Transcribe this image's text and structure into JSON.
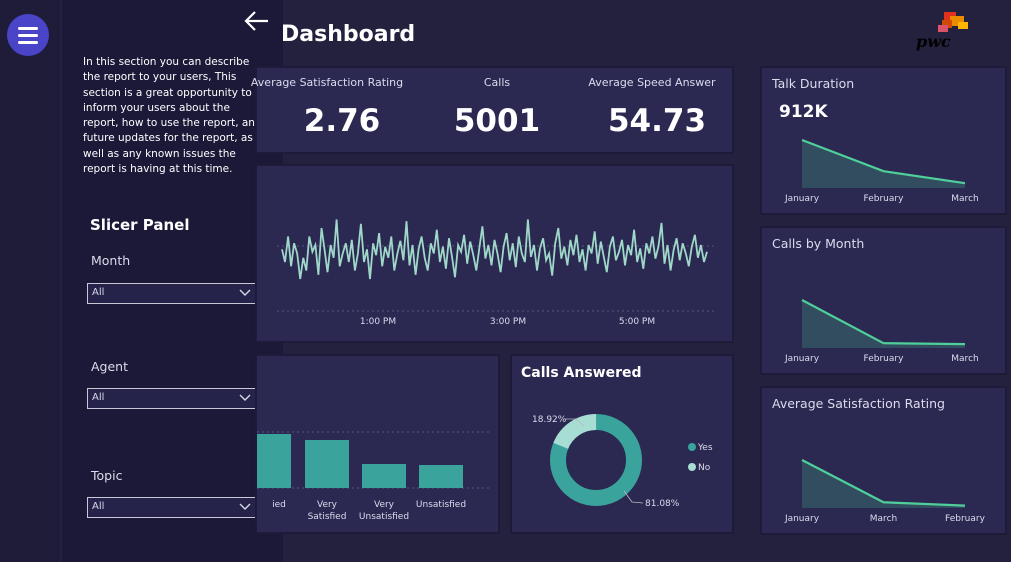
{
  "page": {
    "title": "Dashboard"
  },
  "logo": {
    "text": "pwc"
  },
  "panel": {
    "description": "In this section you can describe the report to your users, This section is a great opportunity to inform your users about the report, how to use the report, any future updates for the report, as well as any known issues the report is having at this time.",
    "slicer_title": "Slicer Panel",
    "slicers": [
      {
        "label": "Month",
        "value": "All"
      },
      {
        "label": "Agent",
        "value": "All"
      },
      {
        "label": "Topic",
        "value": "All"
      }
    ]
  },
  "kpis": [
    {
      "label": "Average Satisfaction Rating",
      "value": "2.76"
    },
    {
      "label": "Calls",
      "value": "5001"
    },
    {
      "label": "Average Speed Answer",
      "value": "54.73"
    }
  ],
  "chart_data": [
    {
      "type": "line",
      "title": "Talk Duration",
      "value_label": "912K",
      "categories": [
        "January",
        "February",
        "March"
      ],
      "values": [
        1.0,
        0.35,
        0.1
      ],
      "ylim": [
        0,
        1
      ],
      "grid": false
    },
    {
      "type": "line",
      "title": "Calls by Month",
      "categories": [
        "January",
        "February",
        "March"
      ],
      "values": [
        1.0,
        0.1,
        0.08
      ],
      "ylim": [
        0,
        1
      ],
      "grid": false
    },
    {
      "type": "line",
      "title": "Average Satisfaction Rating",
      "categories": [
        "January",
        "March",
        "February"
      ],
      "values": [
        1.0,
        0.12,
        0.05
      ],
      "ylim": [
        0,
        1
      ],
      "grid": false
    },
    {
      "type": "line",
      "title": "",
      "x_ticks": [
        "1:00 PM",
        "3:00 PM",
        "5:00 PM"
      ],
      "values": [
        0.55,
        0.4,
        0.7,
        0.35,
        0.62,
        0.5,
        0.2,
        0.45,
        0.3,
        0.7,
        0.52,
        0.6,
        0.25,
        0.8,
        0.55,
        0.28,
        0.6,
        0.45,
        0.9,
        0.35,
        0.5,
        0.62,
        0.4,
        0.66,
        0.3,
        0.5,
        0.85,
        0.4,
        0.55,
        0.2,
        0.62,
        0.48,
        0.74,
        0.35,
        0.58,
        0.45,
        0.7,
        0.3,
        0.5,
        0.65,
        0.42,
        0.88,
        0.36,
        0.6,
        0.25,
        0.55,
        0.7,
        0.45,
        0.3,
        0.62,
        0.5,
        0.78,
        0.4,
        0.58,
        0.32,
        0.68,
        0.46,
        0.22,
        0.6,
        0.52,
        0.72,
        0.38,
        0.64,
        0.48,
        0.3,
        0.56,
        0.82,
        0.44,
        0.6,
        0.36,
        0.66,
        0.5,
        0.28,
        0.58,
        0.74,
        0.42,
        0.62,
        0.34,
        0.7,
        0.5,
        0.4,
        0.9,
        0.46,
        0.6,
        0.3,
        0.56,
        0.68,
        0.42,
        0.5,
        0.24,
        0.62,
        0.8,
        0.44,
        0.58,
        0.36,
        0.66,
        0.48,
        0.72,
        0.4,
        0.55,
        0.3,
        0.6,
        0.5,
        0.76,
        0.38,
        0.64,
        0.46,
        0.28,
        0.58,
        0.7,
        0.42,
        0.52,
        0.66,
        0.36,
        0.6,
        0.48,
        0.78,
        0.4,
        0.56,
        0.32,
        0.62,
        0.5,
        0.7,
        0.44,
        0.58,
        0.86,
        0.38,
        0.6,
        0.3,
        0.54,
        0.68,
        0.42,
        0.62,
        0.5,
        0.35,
        0.58,
        0.72,
        0.45,
        0.6,
        0.4,
        0.52
      ],
      "ylim": [
        0,
        1
      ],
      "grid": true
    },
    {
      "type": "bar",
      "title": "",
      "categories": [
        "Satisfied",
        "Very Satisfied",
        "Very Unsatisfied",
        "Unsatisfied"
      ],
      "tick_labels": [
        "ied",
        "Very Satisfied",
        "Very Unsatisfied",
        "Unsatisfied"
      ],
      "values": [
        54,
        48,
        24,
        23
      ],
      "ylim": [
        0,
        60
      ],
      "grid": true
    },
    {
      "type": "pie",
      "title": "Calls Answered",
      "categories": [
        "Yes",
        "No"
      ],
      "values": [
        81.08,
        18.92
      ],
      "labels": [
        "81.08%",
        "18.92%"
      ],
      "legend": "right"
    }
  ],
  "colors": {
    "accent": "#3aa39b",
    "line": "#4fcf9a",
    "no_slice": "#a7ddd3",
    "card": "#2b2852",
    "background": "#24213f"
  }
}
